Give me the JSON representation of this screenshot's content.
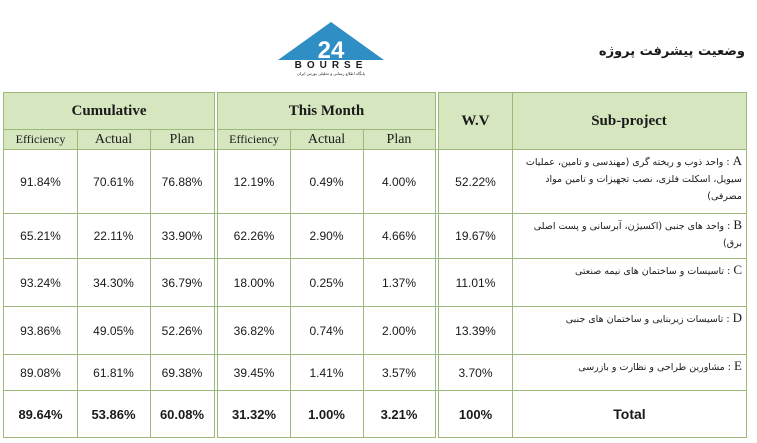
{
  "page": {
    "title": "وضعیت پیشرفت پروژه",
    "logo": {
      "text": "BOURSE",
      "tagline": "پایگاه اطلاع رسانی و تحلیلی بورس ایران"
    }
  },
  "table": {
    "groups": {
      "cumulative": "Cumulative",
      "this_month": "This Month",
      "wv": "W.V",
      "subproject": "Sub-project"
    },
    "columns": {
      "efficiency": "Efficiency",
      "actual": "Actual",
      "plan": "Plan"
    },
    "rows": [
      {
        "letter": "A",
        "label": "واحد ذوب و ریخته گری (مهندسی و تامین، عملیات سیویل، اسکلت فلزی، نصب تجهیزات و تامین مواد مصرفی)",
        "cum_eff": "91.84%",
        "cum_act": "70.61%",
        "cum_plan": "76.88%",
        "m_eff": "12.19%",
        "m_act": "0.49%",
        "m_plan": "4.00%",
        "wv": "52.22%"
      },
      {
        "letter": "B",
        "label": "واحد های جنبی (اکسیژن، آبرسانی و پست اصلی برق)",
        "cum_eff": "65.21%",
        "cum_act": "22.11%",
        "cum_plan": "33.90%",
        "m_eff": "62.26%",
        "m_act": "2.90%",
        "m_plan": "4.66%",
        "wv": "19.67%"
      },
      {
        "letter": "C",
        "label": "تاسیسات و ساختمان های نیمه صنعتی",
        "cum_eff": "93.24%",
        "cum_act": "34.30%",
        "cum_plan": "36.79%",
        "m_eff": "18.00%",
        "m_act": "0.25%",
        "m_plan": "1.37%",
        "wv": "11.01%"
      },
      {
        "letter": "D",
        "label": "تاسیسات زیربنایی و ساختمان های جنبی",
        "cum_eff": "93.86%",
        "cum_act": "49.05%",
        "cum_plan": "52.26%",
        "m_eff": "36.82%",
        "m_act": "0.74%",
        "m_plan": "2.00%",
        "wv": "13.39%"
      },
      {
        "letter": "E",
        "label": "مشاورین طراحی و نظارت و بازرسی",
        "cum_eff": "89.08%",
        "cum_act": "61.81%",
        "cum_plan": "69.38%",
        "m_eff": "39.45%",
        "m_act": "1.41%",
        "m_plan": "3.57%",
        "wv": "3.70%"
      }
    ],
    "total": {
      "label": "Total",
      "cum_eff": "89.64%",
      "cum_act": "53.86%",
      "cum_plan": "60.08%",
      "m_eff": "31.32%",
      "m_act": "1.00%",
      "m_plan": "3.21%",
      "wv": "100%"
    }
  }
}
